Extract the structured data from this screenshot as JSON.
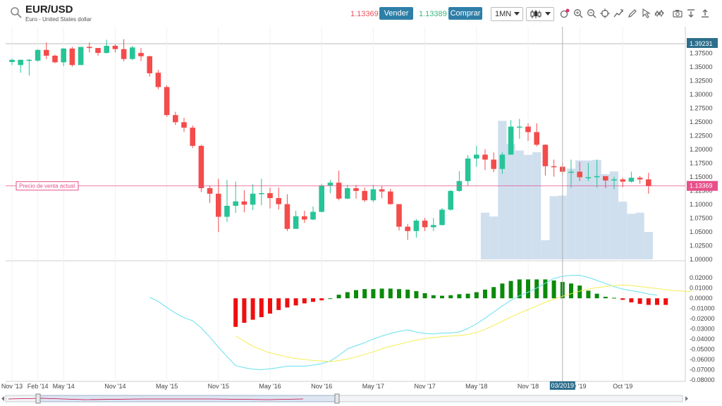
{
  "header": {
    "symbol": "EUR/USD",
    "description": "Euro - United States dollar",
    "bid_price": "1.13369",
    "sell_label": "Vender",
    "ask_price": "1.13389",
    "buy_label": "Comprar",
    "timeframe": "1MN"
  },
  "icons": [
    "search-icon",
    "candlestick-icon",
    "indicators-icon",
    "zoom-in-icon",
    "zoom-out-icon",
    "crosshair-icon",
    "trend-icon",
    "pencil-icon",
    "cursor-icon",
    "pattern-icon",
    "camera-icon",
    "download-icon",
    "share-icon"
  ],
  "colors": {
    "up": "#26c497",
    "down": "#f44b4b",
    "volume": "#cfdfee",
    "macd_up": "#0b8a0b",
    "macd_down": "#ee0f0f",
    "macd_line": "#66e0f0",
    "signal_line": "#f2ee55",
    "current_price": "#e7508a",
    "accent": "#2e7fa8"
  },
  "chart_data": [
    {
      "type": "candlestick",
      "panel": "price",
      "ylim": [
        1.0,
        1.39231
      ],
      "yticks": [
        "1.00000",
        "1.02500",
        "1.05000",
        "1.07500",
        "1.10000",
        "1.12500",
        "1.15000",
        "1.17500",
        "1.20000",
        "1.22500",
        "1.25000",
        "1.27500",
        "1.30000",
        "1.32500",
        "1.35000",
        "1.37500"
      ],
      "top_label": "1.39231",
      "current_price": 1.13369,
      "current_label": "1.13369",
      "current_price_text": "Precio de venta actual",
      "candles": [
        [
          1.359,
          1.363,
          1.3535,
          1.365
        ],
        [
          1.3535,
          1.363,
          1.3395,
          1.3635
        ],
        [
          1.363,
          1.363,
          1.3345,
          1.3645
        ],
        [
          1.3615,
          1.381,
          1.3595,
          1.382
        ],
        [
          1.381,
          1.3705,
          1.364,
          1.3945
        ],
        [
          1.3705,
          1.3585,
          1.357,
          1.3725
        ],
        [
          1.3585,
          1.3835,
          1.3515,
          1.3845
        ],
        [
          1.3835,
          1.3535,
          1.3505,
          1.3865
        ],
        [
          1.3535,
          1.3865,
          1.3535,
          1.3865
        ],
        [
          1.3865,
          1.3845,
          1.3765,
          1.3945
        ],
        [
          1.3845,
          1.3755,
          1.3705,
          1.3845
        ],
        [
          1.3755,
          1.3885,
          1.3745,
          1.3995
        ],
        [
          1.3885,
          1.3825,
          1.3765,
          1.3915
        ],
        [
          1.3825,
          1.3645,
          1.3605,
          1.4005
        ],
        [
          1.3645,
          1.3855,
          1.3625,
          1.3885
        ],
        [
          1.3755,
          1.3695,
          1.3605,
          1.3845
        ],
        [
          1.3695,
          1.3385,
          1.3325,
          1.3705
        ],
        [
          1.3395,
          1.3135,
          1.3095,
          1.3445
        ],
        [
          1.3135,
          1.2625,
          1.2595,
          1.3165
        ],
        [
          1.2625,
          1.2495,
          1.2445,
          1.2685
        ],
        [
          1.2495,
          1.2395,
          1.2315,
          1.2575
        ],
        [
          1.2395,
          1.2065,
          1.2025,
          1.2435
        ],
        [
          1.2065,
          1.1295,
          1.1225,
          1.2085
        ],
        [
          1.1295,
          1.1195,
          1.1025,
          1.1345
        ],
        [
          1.1195,
          1.0775,
          1.0495,
          1.1465
        ],
        [
          1.0775,
          1.0975,
          1.0685,
          1.1445
        ],
        [
          1.0975,
          1.1055,
          1.0845,
          1.1415
        ],
        [
          1.1055,
          1.0995,
          1.0855,
          1.1255
        ],
        [
          1.0995,
          1.1195,
          1.0895,
          1.1365
        ],
        [
          1.1195,
          1.1205,
          1.0985,
          1.1465
        ],
        [
          1.1205,
          1.1115,
          1.0925,
          1.1305
        ],
        [
          1.1115,
          1.1005,
          1.0905,
          1.1305
        ],
        [
          1.1005,
          1.0555,
          1.0515,
          1.1185
        ],
        [
          1.0555,
          1.0785,
          1.0555,
          1.0885
        ],
        [
          1.0785,
          1.0725,
          1.0665,
          1.0885
        ],
        [
          1.0725,
          1.0865,
          1.0715,
          1.0965
        ],
        [
          1.0865,
          1.1345,
          1.0855,
          1.1375
        ],
        [
          1.1345,
          1.1395,
          1.1205,
          1.1445
        ],
        [
          1.1395,
          1.1105,
          1.1075,
          1.1615
        ],
        [
          1.1105,
          1.1295,
          1.1095,
          1.1355
        ],
        [
          1.1295,
          1.1245,
          1.1105,
          1.1355
        ],
        [
          1.1245,
          1.1075,
          1.1045,
          1.1305
        ],
        [
          1.1075,
          1.1275,
          1.1045,
          1.1355
        ],
        [
          1.1275,
          1.1235,
          1.1115,
          1.1335
        ],
        [
          1.1235,
          1.1005,
          1.0995,
          1.1285
        ],
        [
          1.1005,
          1.0595,
          1.0525,
          1.1005
        ],
        [
          1.0595,
          1.0515,
          1.0355,
          1.0645
        ],
        [
          1.0515,
          1.0705,
          1.0395,
          1.0735
        ],
        [
          1.0705,
          1.0585,
          1.0515,
          1.0755
        ],
        [
          1.0585,
          1.0625,
          1.0515,
          1.0755
        ],
        [
          1.0625,
          1.0905,
          1.0615,
          1.0935
        ],
        [
          1.0905,
          1.1245,
          1.0885,
          1.1265
        ],
        [
          1.1245,
          1.1425,
          1.1225,
          1.1605
        ],
        [
          1.1425,
          1.1835,
          1.1335,
          1.1895
        ],
        [
          1.1835,
          1.1905,
          1.1685,
          1.2065
        ],
        [
          1.1905,
          1.1815,
          1.1625,
          1.2005
        ],
        [
          1.1815,
          1.1645,
          1.1585,
          1.1945
        ],
        [
          1.1645,
          1.1905,
          1.1555,
          1.1945
        ],
        [
          1.1905,
          1.2415,
          1.1915,
          1.2535
        ],
        [
          1.2415,
          1.2415,
          1.2195,
          1.2555
        ],
        [
          1.2415,
          1.2315,
          1.2155,
          1.2475
        ],
        [
          1.2315,
          1.2085,
          1.2055,
          1.2475
        ],
        [
          1.2085,
          1.1695,
          1.1525,
          1.2095
        ],
        [
          1.1695,
          1.1685,
          1.1505,
          1.1815
        ],
        [
          1.1685,
          1.1595,
          1.1535,
          1.1755
        ],
        [
          1.1595,
          1.1595,
          1.1305,
          1.1815
        ],
        [
          1.1595,
          1.1495,
          1.1425,
          1.1775
        ],
        [
          1.1495,
          1.1495,
          1.1425,
          1.1755
        ],
        [
          1.1495,
          1.1515,
          1.1305,
          1.1815
        ],
        [
          1.1515,
          1.1435,
          1.1295,
          1.1505
        ],
        [
          1.1435,
          1.1455,
          1.1275,
          1.1505
        ],
        [
          1.1455,
          1.1415,
          1.1315,
          1.1485
        ],
        [
          1.1415,
          1.1485,
          1.1395,
          1.1595
        ],
        [
          1.1485,
          1.1455,
          1.1375,
          1.1515
        ],
        [
          1.1455,
          1.1336,
          1.1195,
          1.1575
        ]
      ],
      "volume": [
        0.085,
        0.078,
        0.252,
        0.21,
        0.198,
        0.19,
        0.195,
        0.035,
        0.115,
        0.116,
        0.165,
        0.18,
        0.18,
        0.181,
        0.155,
        0.16,
        0.105,
        0.083,
        0.085,
        0.05
      ],
      "volume_start_index": 55
    },
    {
      "type": "macd",
      "panel": "indicator",
      "ylim": [
        -0.08,
        0.025
      ],
      "yticks": [
        "0.02000",
        "0.01000",
        "0.00000",
        "-0.01000",
        "-0.02000",
        "-0.03000",
        "-0.04000",
        "-0.05000",
        "-0.06000",
        "-0.07000",
        "-0.08000"
      ],
      "histogram_start_index": 26,
      "histogram": [
        -0.028,
        -0.024,
        -0.021,
        -0.0185,
        -0.015,
        -0.0115,
        -0.009,
        -0.007,
        -0.005,
        -0.0035,
        -0.002,
        0.0,
        0.0035,
        0.006,
        0.008,
        0.009,
        0.009,
        0.0095,
        0.0095,
        0.009,
        0.0085,
        0.007,
        0.005,
        0.003,
        0.0025,
        0.003,
        0.004,
        0.0045,
        0.006,
        0.0085,
        0.011,
        0.0145,
        0.017,
        0.0185,
        0.0185,
        0.0185,
        0.0185,
        0.0175,
        0.016,
        0.0145,
        0.0125,
        0.0075,
        0.0045,
        0.0015,
        0.0005,
        -0.0015,
        -0.004,
        -0.0055,
        -0.0065,
        -0.0065,
        -0.0065
      ],
      "macd_start_index": 16,
      "macd": [
        0.001,
        -0.003,
        -0.009,
        -0.0145,
        -0.019,
        -0.022,
        -0.029,
        -0.038,
        -0.048,
        -0.057,
        -0.066,
        -0.068,
        -0.0695,
        -0.07,
        -0.069,
        -0.068,
        -0.0665,
        -0.0665,
        -0.0665,
        -0.0655,
        -0.064,
        -0.0615,
        -0.056,
        -0.0495,
        -0.0465,
        -0.0435,
        -0.04,
        -0.037,
        -0.0345,
        -0.0325,
        -0.031,
        -0.033,
        -0.0345,
        -0.035,
        -0.034,
        -0.034,
        -0.033,
        -0.0295,
        -0.025,
        -0.0195,
        -0.0135,
        -0.0075,
        -0.002,
        0.0025,
        0.006,
        0.01,
        0.0148,
        0.0195,
        0.0215,
        0.0225,
        0.0225,
        0.0205,
        0.0175,
        0.0145,
        0.0115,
        0.009,
        0.0075,
        0.006,
        0.0042,
        0.003
      ],
      "signal_start_index": 26,
      "signal": [
        -0.037,
        -0.042,
        -0.047,
        -0.0505,
        -0.0535,
        -0.0555,
        -0.0575,
        -0.059,
        -0.06,
        -0.061,
        -0.0615,
        -0.062,
        -0.061,
        -0.0595,
        -0.0575,
        -0.055,
        -0.0525,
        -0.0495,
        -0.047,
        -0.045,
        -0.043,
        -0.041,
        -0.0395,
        -0.0385,
        -0.0375,
        -0.037,
        -0.0365,
        -0.0355,
        -0.0335,
        -0.0305,
        -0.0265,
        -0.0225,
        -0.0185,
        -0.0145,
        -0.011,
        -0.0075,
        -0.004,
        -0.001,
        0.002,
        0.0045,
        0.007,
        0.009,
        0.0105,
        0.0115,
        0.0125,
        0.013,
        0.0125,
        0.0115,
        0.0105,
        0.0095,
        0.0085,
        0.0075,
        0.007,
        0.0065
      ]
    }
  ],
  "xaxis": {
    "ticks": [
      {
        "label": "Nov '13",
        "i": 0
      },
      {
        "label": "Feb '14",
        "i": 3
      },
      {
        "label": "May '14",
        "i": 6
      },
      {
        "label": "Nov '14",
        "i": 12
      },
      {
        "label": "May '15",
        "i": 18
      },
      {
        "label": "Nov '15",
        "i": 24
      },
      {
        "label": "May '16",
        "i": 30
      },
      {
        "label": "Nov '16",
        "i": 36
      },
      {
        "label": "May '17",
        "i": 42
      },
      {
        "label": "Nov '17",
        "i": 48
      },
      {
        "label": "May '18",
        "i": 54
      },
      {
        "label": "Nov '18",
        "i": 60
      },
      {
        "label": "y '19",
        "i": 66
      },
      {
        "label": "Oct '19",
        "i": 71
      }
    ],
    "current_date_label": "03/2019",
    "current_index": 64
  }
}
